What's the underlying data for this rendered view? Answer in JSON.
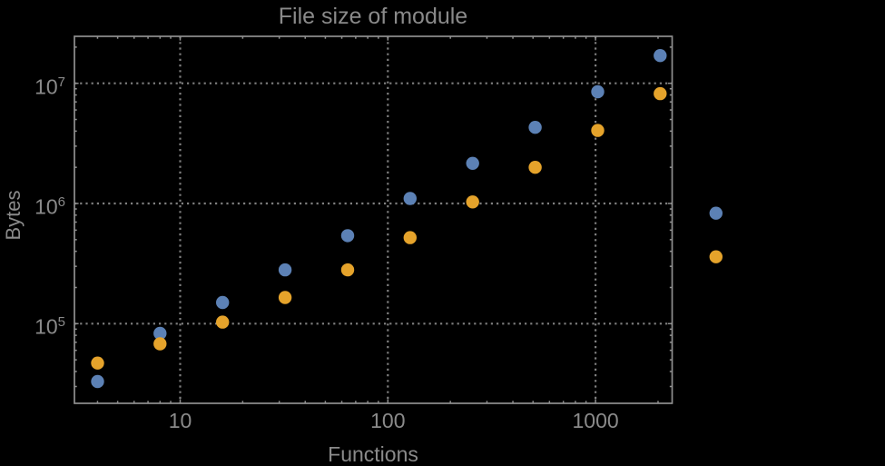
{
  "chart_data": {
    "type": "scatter",
    "title": "File size of module",
    "xlabel": "Functions",
    "ylabel": "Bytes",
    "x_scale": "log",
    "y_scale": "log",
    "xlim": [
      3.1,
      2340
    ],
    "ylim": [
      21700,
      24600000
    ],
    "grid": "dotted gray gridlines at decade ticks, frame on all four sides with inward ticks",
    "legend": "none",
    "clipping": false,
    "x_ticks": [
      {
        "value": 10,
        "label": "10"
      },
      {
        "value": 100,
        "label": "100"
      },
      {
        "value": 1000,
        "label": "1000"
      }
    ],
    "y_ticks": [
      {
        "value": 100000,
        "label": "10^5"
      },
      {
        "value": 1000000,
        "label": "10^6"
      },
      {
        "value": 10000000,
        "label": "10^7"
      }
    ],
    "x": [
      4,
      8,
      16,
      32,
      64,
      128,
      256,
      512,
      1024,
      2048,
      3800
    ],
    "series": [
      {
        "name": "blue",
        "color": "#5c81b5",
        "values": [
          33000,
          83000,
          150000,
          280000,
          540000,
          1100000,
          2160000,
          4300000,
          8500000,
          17000000,
          830000
        ]
      },
      {
        "name": "orange",
        "color": "#e5a32b",
        "values": [
          47000,
          68000,
          103000,
          165000,
          280000,
          520000,
          1030000,
          2000000,
          4050000,
          8200000,
          360000
        ]
      }
    ]
  },
  "style_colors": {
    "background": "#000000",
    "text": "#8a8a8a",
    "frame": "#8f8f8f",
    "grid": "#7f7f7f"
  }
}
